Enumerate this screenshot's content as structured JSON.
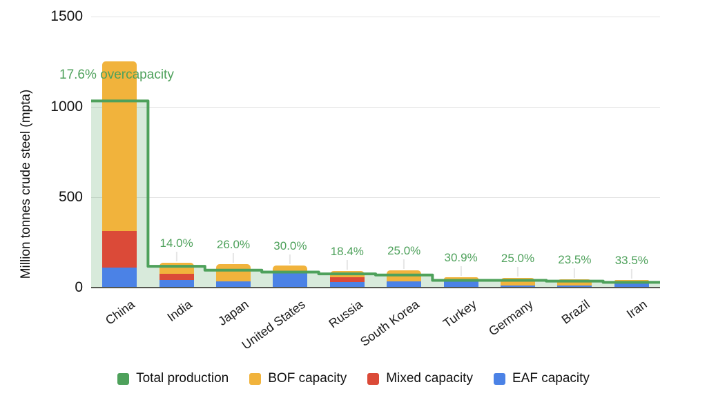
{
  "chart_data": {
    "type": "bar",
    "stacked": true,
    "title": "",
    "ylabel": "Million tonnes crude steel (mpta)",
    "y_ticks": [
      0,
      500,
      1000,
      1500
    ],
    "ylim": [
      0,
      1500
    ],
    "grid": "horizontal",
    "categories": [
      "China",
      "India",
      "Japan",
      "United States",
      "Russia",
      "South Korea",
      "Turkey",
      "Germany",
      "Brazil",
      "Iran"
    ],
    "series": [
      {
        "name": "EAF capacity",
        "color": "#4b82e6",
        "values": [
          110,
          42,
          33,
          82,
          30,
          33,
          44,
          13,
          12,
          36
        ]
      },
      {
        "name": "Mixed capacity",
        "color": "#db4a38",
        "values": [
          203,
          34,
          0,
          0,
          28,
          0,
          0,
          0,
          0,
          0
        ]
      },
      {
        "name": "BOF capacity",
        "color": "#f1b33c",
        "values": [
          940,
          61,
          97,
          41,
          35,
          61,
          14,
          40,
          35,
          7
        ]
      }
    ],
    "production_line": {
      "name": "Total production",
      "color": "#4ea15b",
      "area_fill": "rgba(78,161,91,0.22)",
      "values": [
        1033,
        118,
        96,
        86,
        76,
        70,
        40,
        40,
        36,
        29
      ]
    },
    "overcapacity_labels": [
      "17.6% overcapacity",
      "14.0%",
      "26.0%",
      "30.0%",
      "18.4%",
      "25.0%",
      "30.9%",
      "25.0%",
      "23.5%",
      "33.5%"
    ],
    "legend_position": "bottom"
  },
  "legend": {
    "items": [
      {
        "label": "Total production",
        "color": "#4ea15b"
      },
      {
        "label": "BOF capacity",
        "color": "#f1b33c"
      },
      {
        "label": "Mixed capacity",
        "color": "#db4a38"
      },
      {
        "label": "EAF capacity",
        "color": "#4b82e6"
      }
    ]
  }
}
